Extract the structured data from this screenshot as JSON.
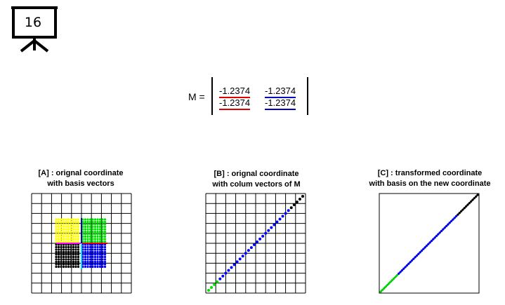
{
  "slide": {
    "number": "16",
    "icon": "presentation-board-icon"
  },
  "matrix": {
    "label": "M =",
    "rows": [
      [
        "-1.2374",
        "-1.2374"
      ],
      [
        "-1.2374",
        "-1.2374"
      ]
    ],
    "column_colors": [
      "#e00000",
      "#0000c0"
    ]
  },
  "panels": [
    {
      "title_line1": "[A] : orignal coordinate",
      "title_line2": "with basis vectors"
    },
    {
      "title_line1": "[B] : orignal coordinate",
      "title_line2": "with colum vectors of M"
    },
    {
      "title_line1": "[C] : transformed coordinate",
      "title_line2": "with basis on the new coordinate"
    }
  ],
  "colors": {
    "yellow": "#ffff00",
    "green": "#00e000",
    "black": "#000000",
    "blue": "#0000ff",
    "red": "#e00000",
    "magenta": "#ff00ff",
    "cyan": "#00e0e0"
  }
}
